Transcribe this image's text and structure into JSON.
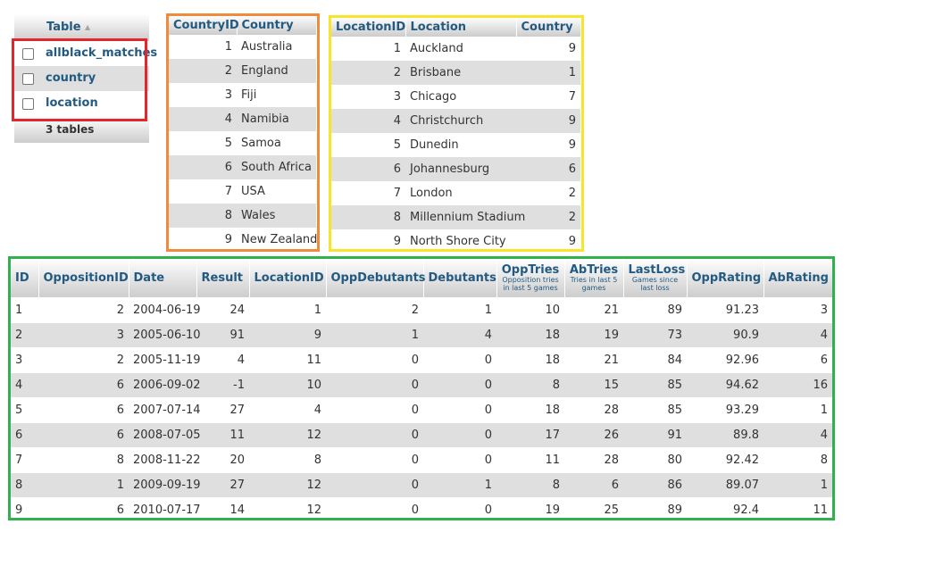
{
  "tables_panel": {
    "header": "Table",
    "sort_icon": "sort-asc-icon",
    "items": [
      {
        "label": "allblack_matches"
      },
      {
        "label": "country"
      },
      {
        "label": "location"
      }
    ],
    "footer": "3 tables"
  },
  "country_table": {
    "columns": [
      "CountryID",
      "Country"
    ],
    "rows": [
      [
        "1",
        "Australia"
      ],
      [
        "2",
        "England"
      ],
      [
        "3",
        "Fiji"
      ],
      [
        "4",
        "Namibia"
      ],
      [
        "5",
        "Samoa"
      ],
      [
        "6",
        "South Africa"
      ],
      [
        "7",
        "USA"
      ],
      [
        "8",
        "Wales"
      ],
      [
        "9",
        "New Zealand"
      ]
    ]
  },
  "location_table": {
    "columns": [
      "LocationID",
      "Location",
      "Country"
    ],
    "rows": [
      [
        "1",
        "Auckland",
        "9"
      ],
      [
        "2",
        "Brisbane",
        "1"
      ],
      [
        "3",
        "Chicago",
        "7"
      ],
      [
        "4",
        "Christchurch",
        "9"
      ],
      [
        "5",
        "Dunedin",
        "9"
      ],
      [
        "6",
        "Johannesburg",
        "6"
      ],
      [
        "7",
        "London",
        "2"
      ],
      [
        "8",
        "Millennium Stadium",
        "2"
      ],
      [
        "9",
        "North Shore City",
        "9"
      ]
    ]
  },
  "matches_table": {
    "columns": [
      {
        "label": "ID"
      },
      {
        "label": "OppositionID"
      },
      {
        "label": "Date"
      },
      {
        "label": "Result"
      },
      {
        "label": "LocationID"
      },
      {
        "label": "OppDebutants"
      },
      {
        "label": "Debutants"
      },
      {
        "label": "OppTries",
        "sub": "Opposition tries in last 5 games"
      },
      {
        "label": "AbTries",
        "sub": "Tries in last 5 games"
      },
      {
        "label": "LastLoss",
        "sub": "Games since last loss"
      },
      {
        "label": "OppRating"
      },
      {
        "label": "AbRating"
      }
    ],
    "rows": [
      [
        "1",
        "2",
        "2004-06-19",
        "24",
        "1",
        "2",
        "1",
        "10",
        "21",
        "89",
        "91.23",
        "3"
      ],
      [
        "2",
        "3",
        "2005-06-10",
        "91",
        "9",
        "1",
        "4",
        "18",
        "19",
        "73",
        "90.9",
        "4"
      ],
      [
        "3",
        "2",
        "2005-11-19",
        "4",
        "11",
        "0",
        "0",
        "18",
        "21",
        "84",
        "92.96",
        "6"
      ],
      [
        "4",
        "6",
        "2006-09-02",
        "-1",
        "10",
        "0",
        "0",
        "8",
        "15",
        "85",
        "94.62",
        "16"
      ],
      [
        "5",
        "6",
        "2007-07-14",
        "27",
        "4",
        "0",
        "0",
        "18",
        "28",
        "85",
        "93.29",
        "1"
      ],
      [
        "6",
        "6",
        "2008-07-05",
        "11",
        "12",
        "0",
        "0",
        "17",
        "26",
        "91",
        "89.8",
        "4"
      ],
      [
        "7",
        "8",
        "2008-11-22",
        "20",
        "8",
        "0",
        "0",
        "11",
        "28",
        "80",
        "92.42",
        "8"
      ],
      [
        "8",
        "1",
        "2009-09-19",
        "27",
        "12",
        "0",
        "1",
        "8",
        "6",
        "86",
        "89.07",
        "1"
      ],
      [
        "9",
        "6",
        "2010-07-17",
        "14",
        "12",
        "0",
        "0",
        "19",
        "25",
        "89",
        "92.4",
        "11"
      ]
    ]
  },
  "highlight_colors": {
    "tables_list": "#e3262b",
    "country": "#f08a3c",
    "location": "#f6e52a",
    "matches": "#2fb24c"
  }
}
